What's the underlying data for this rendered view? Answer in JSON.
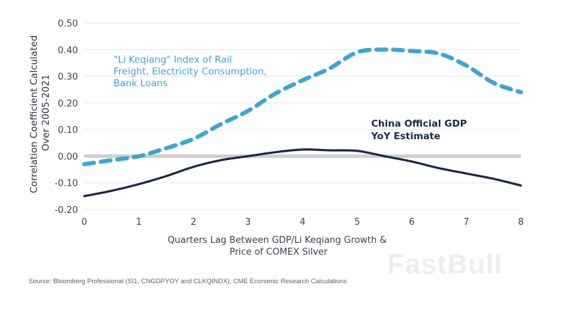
{
  "chart_data": {
    "type": "line",
    "title": "",
    "xlabel": "Quarters Lag Between GDP/Li Keqiang Growth & Price of COMEX Silver",
    "xlabel_lines": [
      "Quarters Lag Between GDP/Li Keqiang Growth &",
      "Price of COMEX Silver"
    ],
    "ylabel": "Correlation Coefficient Calculated Over 2005-2021",
    "ylabel_lines": [
      "Correlation Coefficient Calculated",
      "Over 2005-2021"
    ],
    "xlim": [
      0,
      8
    ],
    "ylim": [
      -0.2,
      0.5
    ],
    "x_ticks": [
      "0",
      "1",
      "2",
      "3",
      "4",
      "5",
      "6",
      "7",
      "8"
    ],
    "y_ticks": [
      "-0.20",
      "-0.10",
      "0.00",
      "0.10",
      "0.20",
      "0.30",
      "0.40",
      "0.50"
    ],
    "y_tick_values": [
      -0.2,
      -0.1,
      0.0,
      0.1,
      0.2,
      0.3,
      0.4,
      0.5
    ],
    "grid": true,
    "zero_line": true,
    "x": [
      0,
      0.5,
      1,
      1.5,
      2,
      2.5,
      3,
      3.5,
      4,
      4.5,
      5,
      5.5,
      6,
      6.5,
      7,
      7.5,
      8
    ],
    "series": [
      {
        "name": "\"Li Keqiang\" Index of Rail Freight, Electricity Consumption, Bank Loans",
        "label_lines": [
          "\"Li Keqiang\" Index of Rail",
          "Freight, Electricity Consumption,",
          "Bank Loans"
        ],
        "style": "dashed",
        "color": "#3aa6d6",
        "values": [
          -0.03,
          -0.015,
          0.0,
          0.03,
          0.065,
          0.12,
          0.17,
          0.235,
          0.285,
          0.33,
          0.39,
          0.4,
          0.395,
          0.385,
          0.34,
          0.275,
          0.24
        ]
      },
      {
        "name": "China Official GDP YoY Estimate",
        "label_lines": [
          "China Official GDP",
          "YoY Estimate"
        ],
        "style": "solid",
        "color": "#1b2a44",
        "values": [
          -0.15,
          -0.13,
          -0.105,
          -0.075,
          -0.04,
          -0.015,
          0.0,
          0.015,
          0.025,
          0.022,
          0.02,
          0.0,
          -0.02,
          -0.045,
          -0.065,
          -0.085,
          -0.11
        ]
      }
    ],
    "legend": "inline annotations"
  },
  "source": "Source: Bloomberg Professional (SI1, CNGDPYOY and CLKQINDX), CME Economic Research Calculations",
  "watermark": "FastBull",
  "colors": {
    "grid": "#e6e6e6",
    "zero_line": "#cfcfcf"
  }
}
